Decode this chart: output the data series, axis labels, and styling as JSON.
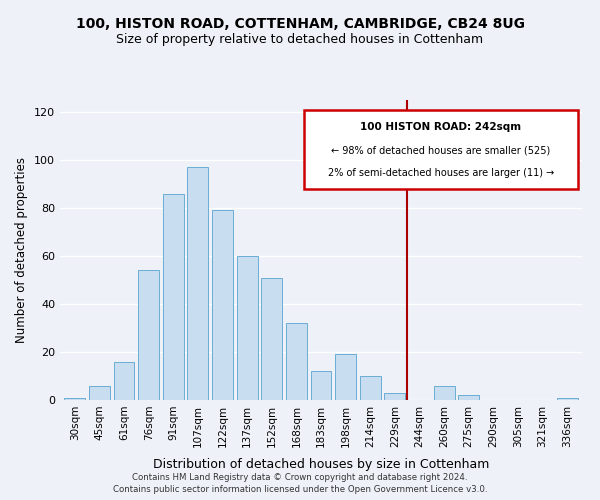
{
  "title": "100, HISTON ROAD, COTTENHAM, CAMBRIDGE, CB24 8UG",
  "subtitle": "Size of property relative to detached houses in Cottenham",
  "xlabel": "Distribution of detached houses by size in Cottenham",
  "ylabel": "Number of detached properties",
  "bar_labels": [
    "30sqm",
    "45sqm",
    "61sqm",
    "76sqm",
    "91sqm",
    "107sqm",
    "122sqm",
    "137sqm",
    "152sqm",
    "168sqm",
    "183sqm",
    "198sqm",
    "214sqm",
    "229sqm",
    "244sqm",
    "260sqm",
    "275sqm",
    "290sqm",
    "305sqm",
    "321sqm",
    "336sqm"
  ],
  "bar_heights": [
    1,
    6,
    16,
    54,
    86,
    97,
    79,
    60,
    51,
    32,
    12,
    19,
    10,
    3,
    0,
    6,
    2,
    0,
    0,
    0,
    1
  ],
  "bar_color": "#c8ddef",
  "bar_edge_color": "#6aadd5",
  "vline_color": "#aa0000",
  "annotation_title": "100 HISTON ROAD: 242sqm",
  "annotation_line1": "← 98% of detached houses are smaller (525)",
  "annotation_line2": "2% of semi-detached houses are larger (11) →",
  "annotation_box_color": "#cc0000",
  "annotation_bg": "#ffffff",
  "ylim": [
    0,
    125
  ],
  "yticks": [
    0,
    20,
    40,
    60,
    80,
    100,
    120
  ],
  "footer1": "Contains HM Land Registry data © Crown copyright and database right 2024.",
  "footer2": "Contains public sector information licensed under the Open Government Licence v3.0.",
  "background_color": "#eef2f8",
  "grid_color": "#ffffff",
  "title_fontsize": 10,
  "subtitle_fontsize": 9
}
